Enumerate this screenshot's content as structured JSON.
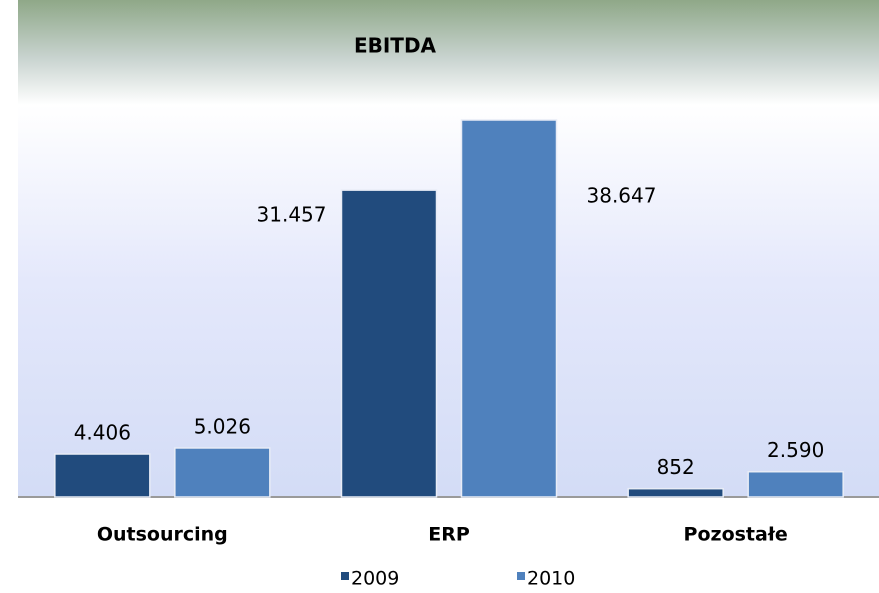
{
  "chart_data": {
    "type": "bar",
    "title": "EBITDA",
    "categories": [
      "Outsourcing",
      "ERP",
      "Pozostałe"
    ],
    "series": [
      {
        "name": "2009",
        "color": "#214b7d",
        "values": [
          4406,
          31457,
          852
        ],
        "value_labels": [
          "4.406",
          "31.457",
          "852"
        ]
      },
      {
        "name": "2010",
        "color": "#4f81bd",
        "values": [
          5026,
          38647,
          2590
        ],
        "value_labels": [
          "5.026",
          "38.647",
          "2.590"
        ]
      }
    ]
  }
}
